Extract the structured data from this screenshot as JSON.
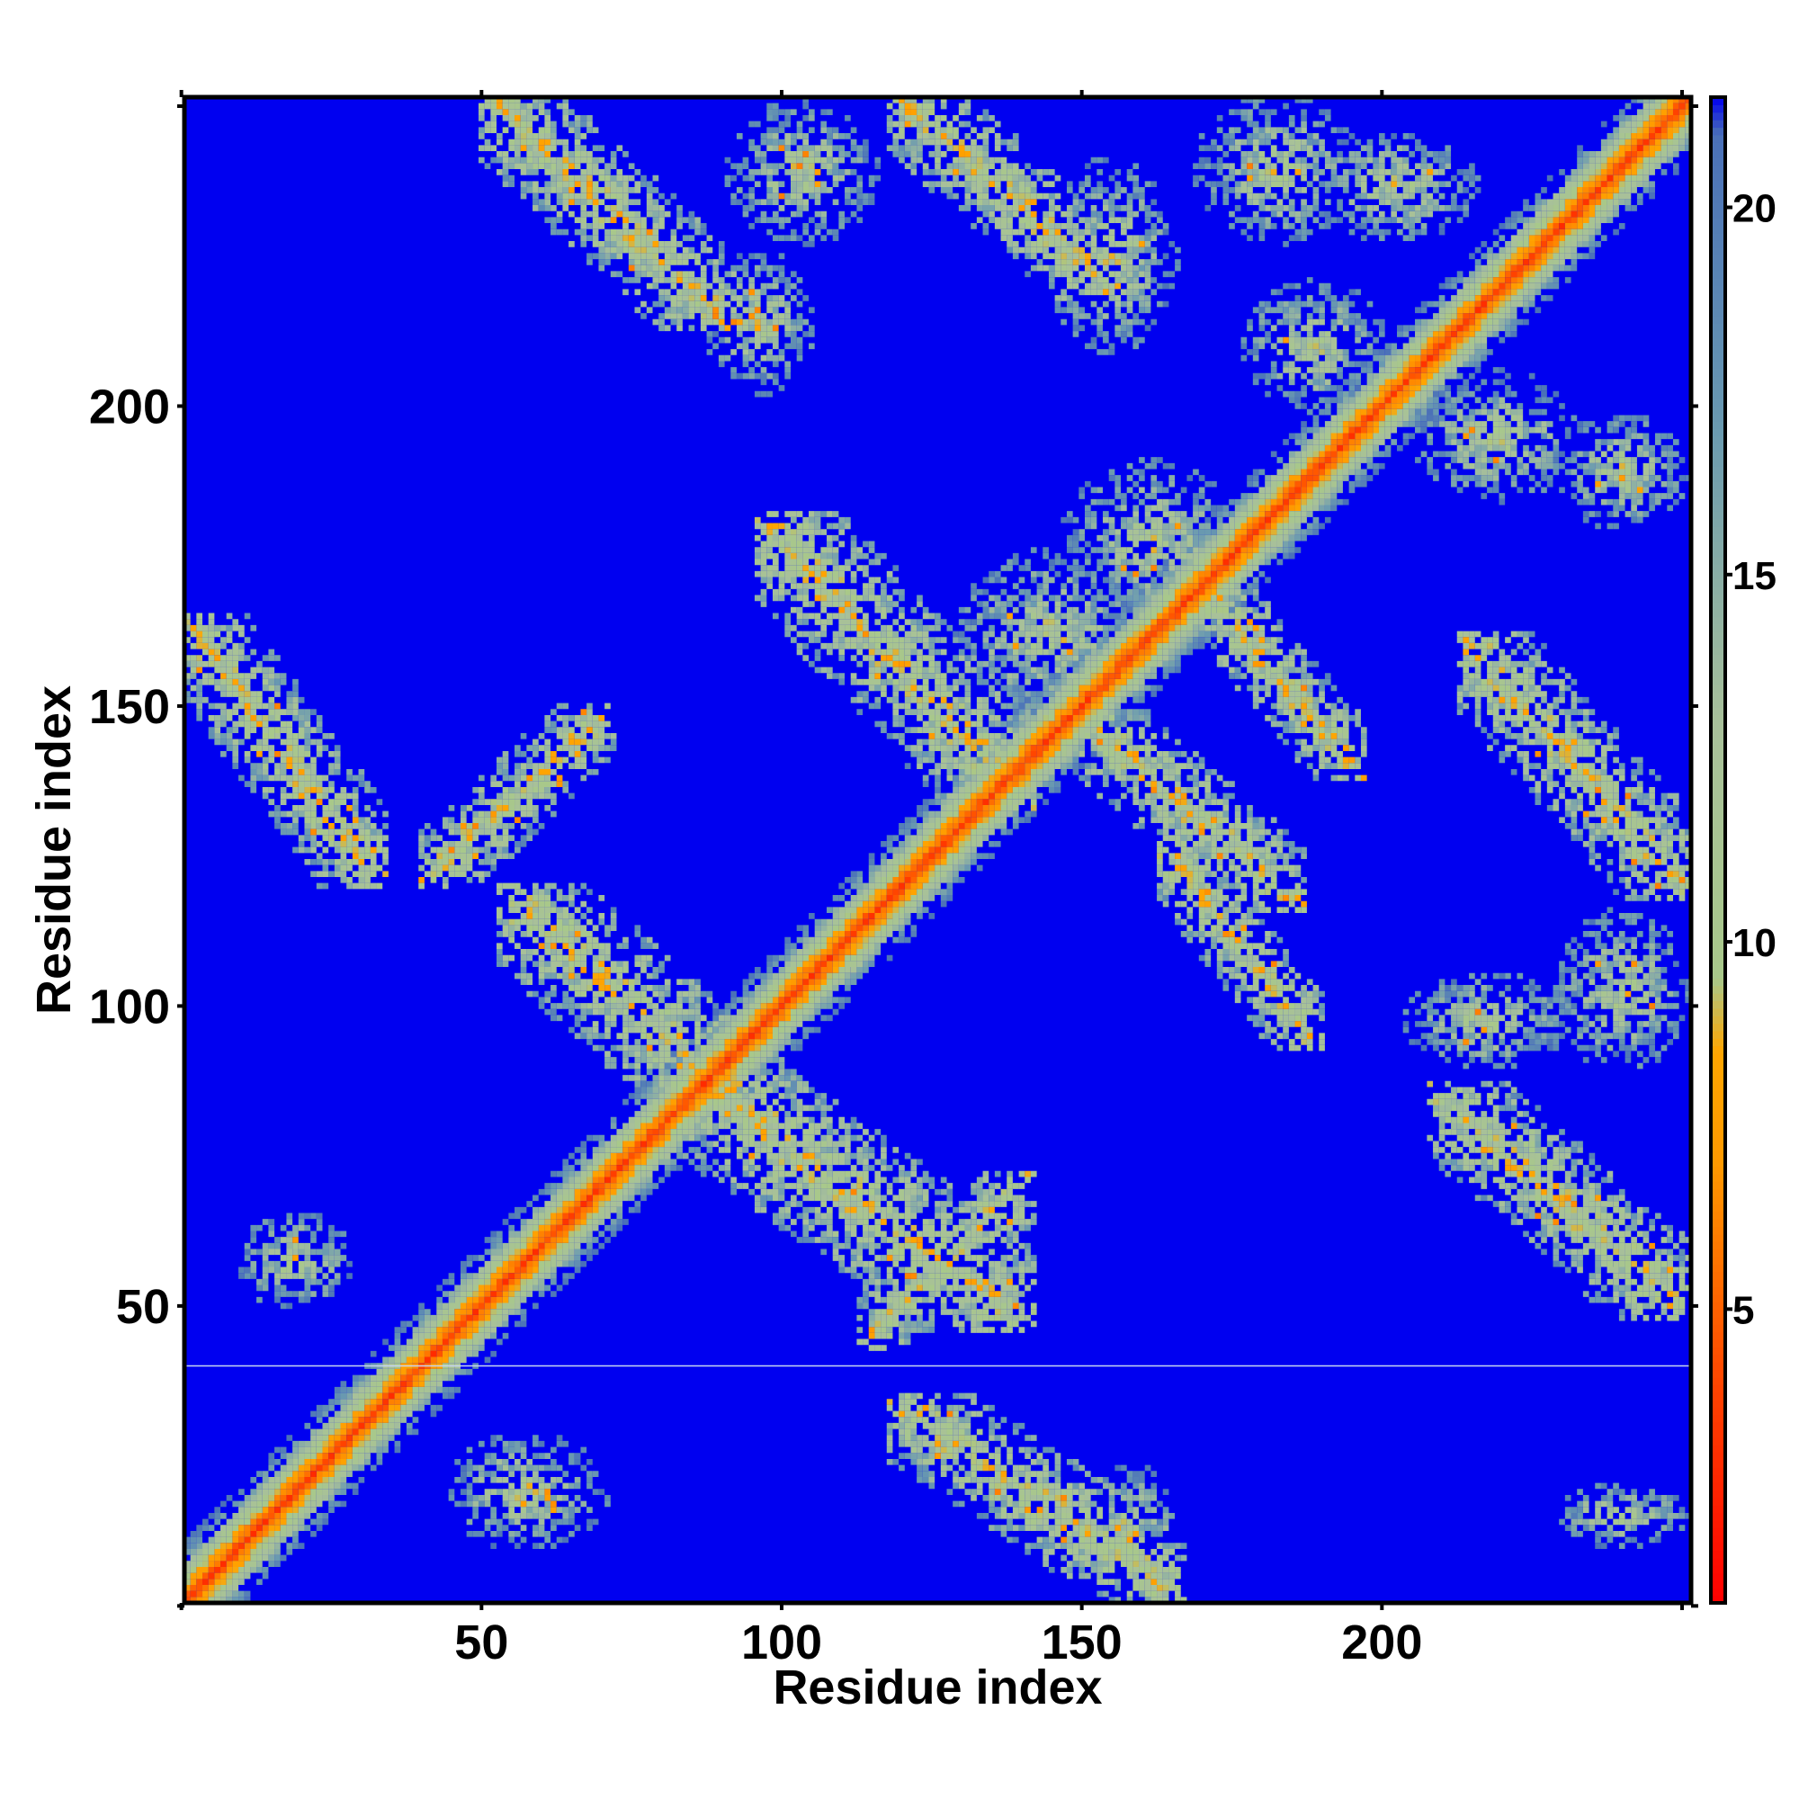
{
  "chart_data": {
    "type": "heatmap",
    "title": "",
    "xlabel": "Residue index",
    "ylabel": "Residue index",
    "xlim": [
      1,
      251
    ],
    "ylim": [
      1,
      251
    ],
    "x_ticks": [
      50,
      100,
      150,
      200
    ],
    "y_ticks": [
      50,
      100,
      150,
      200
    ],
    "colorbar": {
      "range": [
        1,
        21.5
      ],
      "ticks": [
        5,
        10,
        15,
        20
      ],
      "stops": [
        {
          "value": 1,
          "color": "#ff0000"
        },
        {
          "value": 4,
          "color": "#ff4500"
        },
        {
          "value": 7,
          "color": "#ff9900"
        },
        {
          "value": 8.5,
          "color": "#ffa500"
        },
        {
          "value": 9.5,
          "color": "#a8c88a"
        },
        {
          "value": 13,
          "color": "#a8c09a"
        },
        {
          "value": 17,
          "color": "#6a9ab0"
        },
        {
          "value": 21,
          "color": "#4a70b8"
        },
        {
          "value": 21.5,
          "color": "#0000ee"
        }
      ]
    },
    "background_color": "#0000f0",
    "missing_row_residue": 40,
    "description_of_pattern": {
      "diagonal_band": {
        "from": 1,
        "to": 251,
        "core_value": 3.8,
        "half_width_residues": 6
      },
      "contact_regions": [
        {
          "x": [
            2,
            32
          ],
          "y": [
            122,
            163
          ],
          "kind": "antiparallel"
        },
        {
          "x": [
            42,
            70
          ],
          "y": [
            122,
            148
          ],
          "kind": "parallel"
        },
        {
          "x": [
            55,
            100
          ],
          "y": [
            78,
            118
          ],
          "kind": "antiparallel"
        },
        {
          "x": [
            84,
            140
          ],
          "y": [
            48,
            88
          ],
          "kind": "antiparallel"
        },
        {
          "x": [
            115,
            140
          ],
          "y": [
            45,
            70
          ],
          "kind": "parallel"
        },
        {
          "x": [
            120,
            165
          ],
          "y": [
            3,
            33
          ],
          "kind": "antiparallel"
        },
        {
          "x": [
            150,
            165
          ],
          "y": [
            3,
            23
          ],
          "kind": "patch"
        },
        {
          "x": [
            45,
            70
          ],
          "y": [
            10,
            28
          ],
          "kind": "patch"
        },
        {
          "x": [
            10,
            28
          ],
          "y": [
            50,
            65
          ],
          "kind": "patch"
        },
        {
          "x": [
            52,
            90
          ],
          "y": [
            215,
            251
          ],
          "kind": "antiparallel"
        },
        {
          "x": [
            88,
            105
          ],
          "y": [
            203,
            225
          ],
          "kind": "patch"
        },
        {
          "x": [
            92,
            115
          ],
          "y": [
            228,
            250
          ],
          "kind": "patch"
        },
        {
          "x": [
            120,
            155
          ],
          "y": [
            220,
            251
          ],
          "kind": "antiparallel"
        },
        {
          "x": [
            145,
            165
          ],
          "y": [
            210,
            240
          ],
          "kind": "patch"
        },
        {
          "x": [
            170,
            195
          ],
          "y": [
            228,
            251
          ],
          "kind": "patch"
        },
        {
          "x": [
            178,
            200
          ],
          "y": [
            200,
            220
          ],
          "kind": "patch"
        },
        {
          "x": [
            98,
            140
          ],
          "y": [
            135,
            180
          ],
          "kind": "antiparallel"
        },
        {
          "x": [
            130,
            160
          ],
          "y": [
            148,
            175
          ],
          "kind": "patch"
        },
        {
          "x": [
            148,
            175
          ],
          "y": [
            165,
            190
          ],
          "kind": "patch"
        },
        {
          "x": [
            170,
            195
          ],
          "y": [
            140,
            170
          ],
          "kind": "antiparallel"
        },
        {
          "x": [
            150,
            185
          ],
          "y": [
            118,
            148
          ],
          "kind": "antiparallel"
        },
        {
          "x": [
            165,
            188
          ],
          "y": [
            95,
            125
          ],
          "kind": "antiparallel"
        },
        {
          "x": [
            206,
            232
          ],
          "y": [
            185,
            205
          ],
          "kind": "patch"
        },
        {
          "x": [
            230,
            250
          ],
          "y": [
            180,
            198
          ],
          "kind": "patch"
        },
        {
          "x": [
            215,
            250
          ],
          "y": [
            120,
            160
          ],
          "kind": "antiparallel"
        },
        {
          "x": [
            205,
            230
          ],
          "y": [
            90,
            105
          ],
          "kind": "patch"
        },
        {
          "x": [
            210,
            250
          ],
          "y": [
            50,
            85
          ],
          "kind": "antiparallel"
        },
        {
          "x": [
            230,
            250
          ],
          "y": [
            90,
            115
          ],
          "kind": "patch"
        },
        {
          "x": [
            230,
            250
          ],
          "y": [
            10,
            20
          ],
          "kind": "patch"
        },
        {
          "x": [
            190,
            215
          ],
          "y": [
            228,
            245
          ],
          "kind": "patch"
        }
      ]
    }
  }
}
